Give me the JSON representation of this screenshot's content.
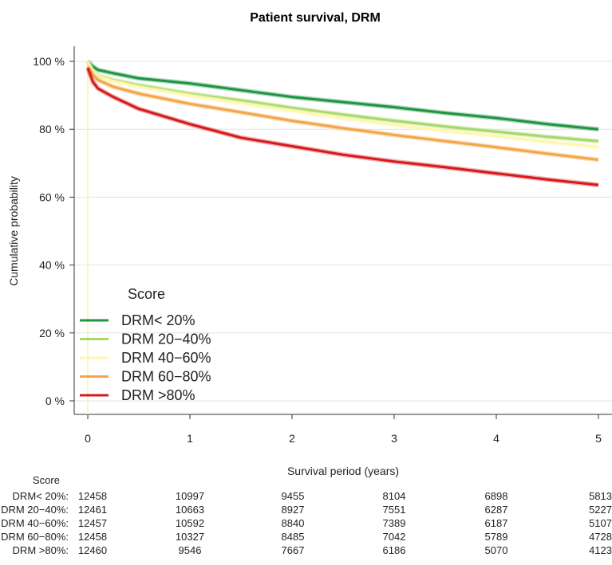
{
  "chart_data": {
    "type": "line",
    "title": "Patient survival, DRM",
    "xlabel": "Survival period (years)",
    "ylabel": "Cumulative probability",
    "xlim": [
      0,
      5
    ],
    "ylim": [
      0,
      1
    ],
    "x_ticks": [
      "0",
      "1",
      "2",
      "3",
      "4",
      "5"
    ],
    "y_ticks": [
      "0 %",
      "20 %",
      "40 %",
      "60 %",
      "80 %",
      "100 %"
    ],
    "grid": true,
    "legend": {
      "title": "Score",
      "placement": "bottom-left"
    },
    "series": [
      {
        "name": "DRM< 20%",
        "color": "#1e9444",
        "x": [
          0,
          0.05,
          0.1,
          0.25,
          0.5,
          1,
          1.5,
          2,
          2.5,
          3,
          3.5,
          4,
          4.5,
          5
        ],
        "y": [
          1.0,
          0.985,
          0.975,
          0.965,
          0.95,
          0.935,
          0.915,
          0.895,
          0.88,
          0.865,
          0.848,
          0.833,
          0.815,
          0.8
        ]
      },
      {
        "name": "DRM 20−40%",
        "color": "#a6d96a",
        "x": [
          0,
          0.05,
          0.1,
          0.25,
          0.5,
          1,
          1.5,
          2,
          2.5,
          3,
          3.5,
          4,
          4.5,
          5
        ],
        "y": [
          1.0,
          0.97,
          0.958,
          0.945,
          0.93,
          0.905,
          0.885,
          0.863,
          0.843,
          0.825,
          0.808,
          0.793,
          0.778,
          0.765
        ]
      },
      {
        "name": "DRM 40−60%",
        "color": "#fff6b0",
        "x": [
          0,
          0.05,
          0.1,
          0.25,
          0.5,
          1,
          1.5,
          2,
          2.5,
          3,
          3.5,
          4,
          4.5,
          5
        ],
        "y": [
          1.0,
          0.97,
          0.957,
          0.942,
          0.925,
          0.9,
          0.877,
          0.855,
          0.833,
          0.813,
          0.795,
          0.78,
          0.763,
          0.748
        ]
      },
      {
        "name": "DRM 60−80%",
        "color": "#f4a548",
        "x": [
          0,
          0.05,
          0.1,
          0.25,
          0.5,
          1,
          1.5,
          2,
          2.5,
          3,
          3.5,
          4,
          4.5,
          5
        ],
        "y": [
          0.985,
          0.96,
          0.945,
          0.925,
          0.905,
          0.875,
          0.85,
          0.825,
          0.803,
          0.783,
          0.765,
          0.747,
          0.728,
          0.71
        ]
      },
      {
        "name": "DRM >80%",
        "color": "#d7191c",
        "x": [
          0,
          0.05,
          0.1,
          0.25,
          0.5,
          1,
          1.5,
          2,
          2.5,
          3,
          3.5,
          4,
          4.5,
          5
        ],
        "y": [
          0.98,
          0.94,
          0.92,
          0.895,
          0.86,
          0.815,
          0.775,
          0.75,
          0.725,
          0.705,
          0.688,
          0.67,
          0.652,
          0.636
        ]
      }
    ]
  },
  "risk_table": {
    "title": "Score",
    "rows": [
      {
        "label": "DRM< 20%:",
        "values": [
          "12458",
          "10997",
          "9455",
          "8104",
          "6898",
          "5813"
        ]
      },
      {
        "label": "DRM 20−40%:",
        "values": [
          "12461",
          "10663",
          "8927",
          "7551",
          "6287",
          "5227"
        ]
      },
      {
        "label": "DRM 40−60%:",
        "values": [
          "12457",
          "10592",
          "8840",
          "7389",
          "6187",
          "5107"
        ]
      },
      {
        "label": "DRM 60−80%:",
        "values": [
          "12458",
          "10327",
          "8485",
          "7042",
          "5789",
          "4728"
        ]
      },
      {
        "label": "DRM >80%:",
        "values": [
          "12460",
          "9546",
          "7667",
          "6186",
          "5070",
          "4123"
        ]
      }
    ]
  }
}
